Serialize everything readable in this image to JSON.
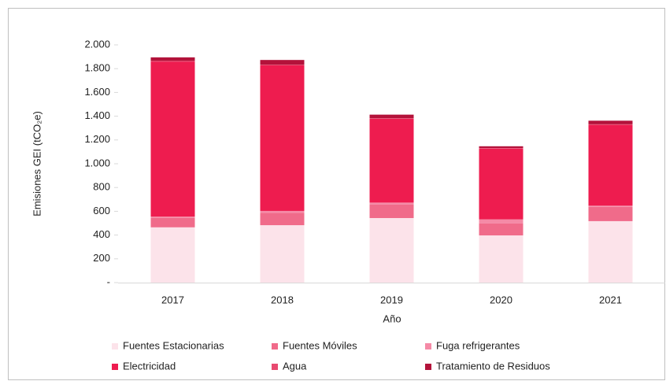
{
  "chart_data": {
    "type": "stacked_bar",
    "x_label": "Año",
    "y_label": "Emisiones GEI (tCO₂e)",
    "categories": [
      "2017",
      "2018",
      "2019",
      "2020",
      "2021"
    ],
    "series": [
      {
        "name": "Fuentes Estacionarias",
        "color": "#fce3ea",
        "values": [
          465,
          483,
          543,
          397,
          517
        ]
      },
      {
        "name": "Fuentes Móviles",
        "color": "#f06b8a",
        "values": [
          80,
          105,
          115,
          100,
          120
        ]
      },
      {
        "name": "Fuga refrigerantes",
        "color": "#f58aa6",
        "values": [
          10,
          15,
          15,
          35,
          10
        ]
      },
      {
        "name": "Electricidad",
        "color": "#ee1c4f",
        "values": [
          1305,
          1225,
          705,
          595,
          680
        ]
      },
      {
        "name": "Agua",
        "color": "#e84a70",
        "values": [
          5,
          5,
          5,
          5,
          5
        ]
      },
      {
        "name": "Tratamiento de Residuos",
        "color": "#b3123a",
        "values": [
          30,
          40,
          30,
          15,
          30
        ]
      }
    ],
    "ylim": [
      0,
      2000
    ],
    "yticks": [
      {
        "value": 0,
        "label": "-"
      },
      200,
      400,
      600,
      800,
      {
        "value": 1000,
        "label": "1.000"
      },
      {
        "value": 1200,
        "label": "1.200"
      },
      {
        "value": 1400,
        "label": "1.400"
      },
      {
        "value": 1600,
        "label": "1.600"
      },
      {
        "value": 1800,
        "label": "1.800"
      },
      {
        "value": 2000,
        "label": "2.000"
      }
    ],
    "grid": false,
    "legend": "bottom"
  }
}
